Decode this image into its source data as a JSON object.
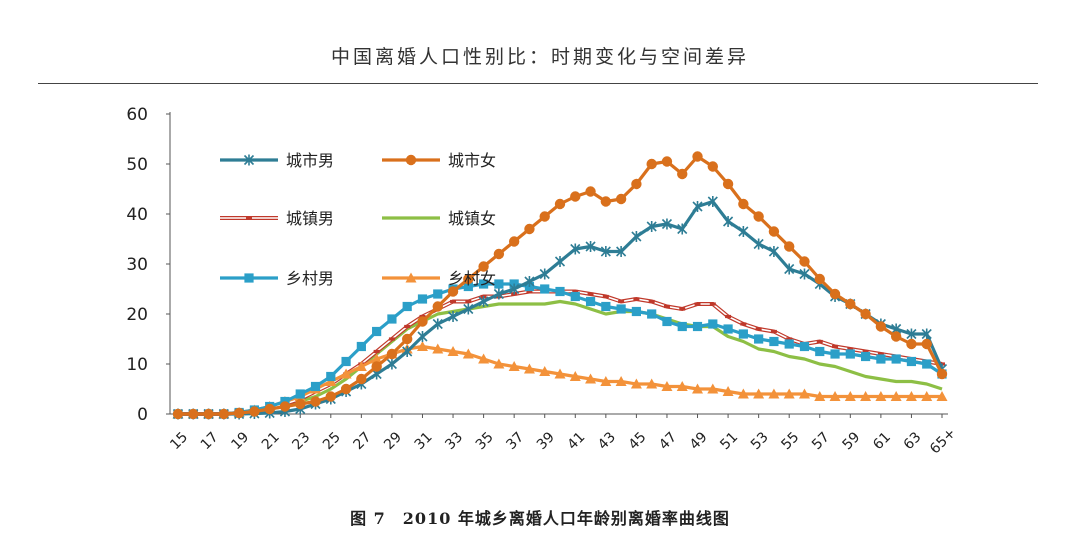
{
  "page": {
    "header": "中国离婚人口性别比：时期变化与空间差异",
    "caption": "图 7　2010 年城乡离婚人口年龄别离婚率曲线图"
  },
  "chart_data": {
    "type": "line",
    "title": "",
    "xlabel": "",
    "ylabel": "",
    "ylim": [
      0,
      60
    ],
    "yticks": [
      "0",
      "10",
      "20",
      "30",
      "40",
      "50",
      "60"
    ],
    "grid": false,
    "legend_position": "top-left",
    "categories": [
      "15",
      "16",
      "17",
      "18",
      "19",
      "20",
      "21",
      "22",
      "23",
      "24",
      "25",
      "26",
      "27",
      "28",
      "29",
      "30",
      "31",
      "32",
      "33",
      "34",
      "35",
      "36",
      "37",
      "38",
      "39",
      "40",
      "41",
      "42",
      "43",
      "44",
      "45",
      "46",
      "47",
      "48",
      "49",
      "50",
      "51",
      "52",
      "53",
      "54",
      "55",
      "56",
      "57",
      "58",
      "59",
      "60",
      "61",
      "62",
      "63",
      "64",
      "65+"
    ],
    "xtick_labels": [
      "15",
      "17",
      "19",
      "21",
      "23",
      "25",
      "27",
      "29",
      "31",
      "33",
      "35",
      "37",
      "39",
      "41",
      "43",
      "45",
      "47",
      "49",
      "51",
      "53",
      "55",
      "57",
      "59",
      "61",
      "63",
      "65+"
    ],
    "series": [
      {
        "name": "城市男",
        "color": "#2E7D95",
        "marker": "x",
        "values": [
          0,
          0,
          0,
          0,
          0,
          0.1,
          0.2,
          0.5,
          1,
          2,
          3,
          4.5,
          6,
          8,
          10,
          12.5,
          15.5,
          18,
          19.5,
          21,
          22.5,
          24,
          25,
          26.5,
          28,
          30.5,
          33,
          33.5,
          32.5,
          32.5,
          35.5,
          37.5,
          38,
          37,
          41.5,
          42.5,
          38.5,
          36.5,
          34,
          32.5,
          29,
          28,
          26,
          23.5,
          22,
          20,
          18,
          17,
          16,
          16,
          9
        ]
      },
      {
        "name": "城市女",
        "color": "#D9701C",
        "marker": "circle",
        "values": [
          0,
          0,
          0,
          0,
          0.2,
          0.5,
          1,
          1.5,
          2,
          2.5,
          3.5,
          5,
          7,
          9.5,
          12,
          15,
          18.5,
          21.5,
          24.5,
          27,
          29.5,
          32,
          34.5,
          37,
          39.5,
          42,
          43.5,
          44.5,
          42.5,
          43,
          46,
          50,
          50.5,
          48,
          51.5,
          49.5,
          46,
          42,
          39.5,
          36.5,
          33.5,
          30.5,
          27,
          24,
          22,
          20,
          17.5,
          15.5,
          14,
          14,
          8
        ]
      },
      {
        "name": "城镇男",
        "color": "#C0392B",
        "marker": "dash",
        "values": [
          0,
          0,
          0,
          0,
          0.2,
          0.6,
          1.2,
          2,
          3,
          4.5,
          6,
          8,
          10,
          12.5,
          15,
          17.5,
          19.5,
          21,
          22.5,
          22.5,
          23.5,
          23.5,
          24,
          24.5,
          24.5,
          24.5,
          24.5,
          24,
          23.5,
          22.5,
          23,
          22.5,
          21.5,
          21,
          22,
          22,
          19.5,
          18,
          17,
          16.5,
          15,
          14,
          14.5,
          13.5,
          13,
          12.5,
          12,
          11.5,
          11,
          10.5,
          10
        ]
      },
      {
        "name": "城镇女",
        "color": "#8DBF45",
        "marker": "none",
        "values": [
          0,
          0,
          0,
          0,
          0.2,
          0.5,
          1,
          1.5,
          2.5,
          3.5,
          5,
          7,
          9.5,
          12,
          14.5,
          17,
          18.5,
          20,
          20.5,
          21,
          21.5,
          22,
          22,
          22,
          22,
          22.5,
          22,
          21,
          20,
          20.5,
          20.5,
          20,
          19,
          18,
          17.5,
          17.5,
          15.5,
          14.5,
          13,
          12.5,
          11.5,
          11,
          10,
          9.5,
          8.5,
          7.5,
          7,
          6.5,
          6.5,
          6,
          5
        ]
      },
      {
        "name": "乡村男",
        "color": "#2B9FC8",
        "marker": "square",
        "values": [
          0,
          0,
          0,
          0,
          0.3,
          0.8,
          1.5,
          2.5,
          4,
          5.5,
          7.5,
          10.5,
          13.5,
          16.5,
          19,
          21.5,
          23,
          24,
          25,
          25.5,
          26,
          26,
          26,
          25.5,
          25,
          24.5,
          23.5,
          22.5,
          21.5,
          21,
          20.5,
          20,
          18.5,
          17.5,
          17.5,
          18,
          17,
          16,
          15,
          14.5,
          14,
          13.5,
          12.5,
          12,
          12,
          11.5,
          11,
          11,
          10.5,
          10,
          8
        ]
      },
      {
        "name": "乡村女",
        "color": "#F3923A",
        "marker": "triangle",
        "values": [
          0,
          0,
          0,
          0,
          0.3,
          0.8,
          1.5,
          2.5,
          3.5,
          5,
          6.5,
          8,
          9.5,
          11,
          12,
          13,
          13.5,
          13,
          12.5,
          12,
          11,
          10,
          9.5,
          9,
          8.5,
          8,
          7.5,
          7,
          6.5,
          6.5,
          6,
          6,
          5.5,
          5.5,
          5,
          5,
          4.5,
          4,
          4,
          4,
          4,
          4,
          3.5,
          3.5,
          3.5,
          3.5,
          3.5,
          3.5,
          3.5,
          3.5,
          3.5
        ]
      }
    ]
  }
}
